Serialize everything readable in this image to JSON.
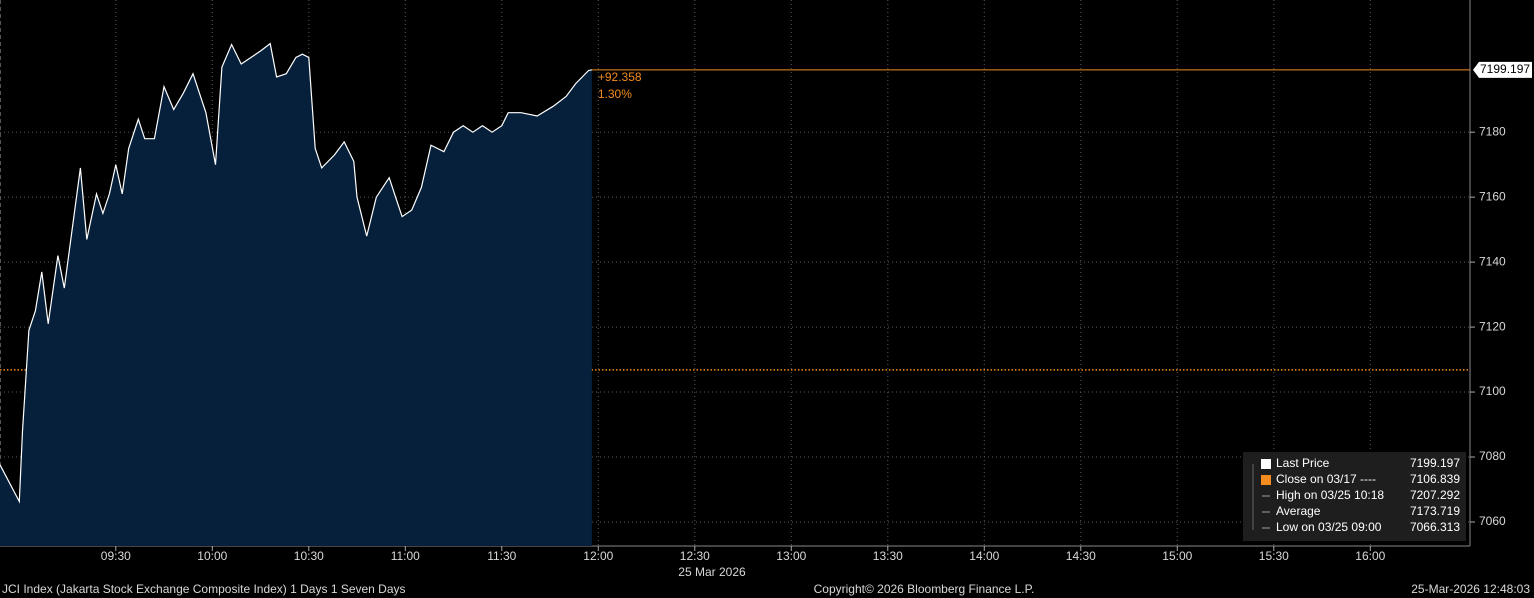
{
  "chart_data": {
    "type": "line",
    "series": [
      {
        "color": "#ffffff",
        "fill": "#06203b",
        "x": [
          "08:54",
          "09:00",
          "09:01",
          "09:03",
          "09:05",
          "09:07",
          "09:09",
          "09:12",
          "09:14",
          "09:16",
          "09:19",
          "09:21",
          "09:24",
          "09:26",
          "09:28",
          "09:30",
          "09:32",
          "09:34",
          "09:37",
          "09:39",
          "09:42",
          "09:45",
          "09:48",
          "09:51",
          "09:54",
          "09:58",
          "10:01",
          "10:03",
          "10:06",
          "10:09",
          "10:12",
          "10:15",
          "10:18",
          "10:20",
          "10:23",
          "10:26",
          "10:28",
          "10:30",
          "10:32",
          "10:34",
          "10:38",
          "10:41",
          "10:44",
          "10:45",
          "10:48",
          "10:51",
          "10:55",
          "10:57",
          "10:59",
          "11:02",
          "11:05",
          "11:08",
          "11:12",
          "11:15",
          "11:18",
          "11:21",
          "11:24",
          "11:27",
          "11:30",
          "11:32",
          "11:36",
          "11:41",
          "11:46",
          "11:50",
          "11:53",
          "11:57",
          "11:58"
        ],
        "values": [
          7077.6,
          7066.313,
          7088,
          7119,
          7125,
          7137,
          7121,
          7142,
          7132,
          7147,
          7169,
          7147,
          7161,
          7155,
          7161,
          7170,
          7161,
          7175,
          7184,
          7178,
          7178,
          7194,
          7187,
          7192,
          7198,
          7186,
          7170,
          7200,
          7207,
          7201,
          7203,
          7205,
          7207.292,
          7197,
          7198,
          7203,
          7204,
          7203,
          7175,
          7169,
          7173,
          7177,
          7171,
          7160,
          7148,
          7160,
          7166,
          7160,
          7154,
          7156,
          7163,
          7176,
          7174,
          7180,
          7182,
          7180,
          7182,
          7180,
          7182,
          7186,
          7186,
          7185,
          7188,
          7191,
          7195,
          7199,
          7199.197
        ]
      }
    ],
    "xlim": [
      "08:54",
      "16:31"
    ],
    "xticks": [
      "09:30",
      "10:00",
      "10:30",
      "11:00",
      "11:30",
      "12:00",
      "12:30",
      "13:00",
      "13:30",
      "14:00",
      "14:30",
      "15:00",
      "15:30",
      "16:00"
    ],
    "ylim": [
      7052.6,
      7220.7
    ],
    "yticks": [
      7060,
      7080,
      7100,
      7120,
      7140,
      7160,
      7180
    ],
    "grid": true,
    "date_label": "25 Mar 2026",
    "change_label": "+92.358",
    "change_pct_label": "1.30%",
    "last_color": "#f28c1e",
    "stats": [
      {
        "label": "Last Price",
        "value": 7199.197
      },
      {
        "label": "Close on 03/17 ----",
        "value": 7106.839
      },
      {
        "label": "High on 03/25 10:18",
        "value": 7207.292
      },
      {
        "label": "Average",
        "value": 7173.719
      },
      {
        "label": "Low on 03/25 09:00",
        "value": 7066.313
      }
    ],
    "footer_left": "JCI Index (Jakarta Stock Exchange Composite Index) 1 Days 1 Seven Days",
    "copyright": "Copyright© 2026 Bloomberg Finance L.P.",
    "timestamp": "25-Mar-2026 12:48:03"
  }
}
